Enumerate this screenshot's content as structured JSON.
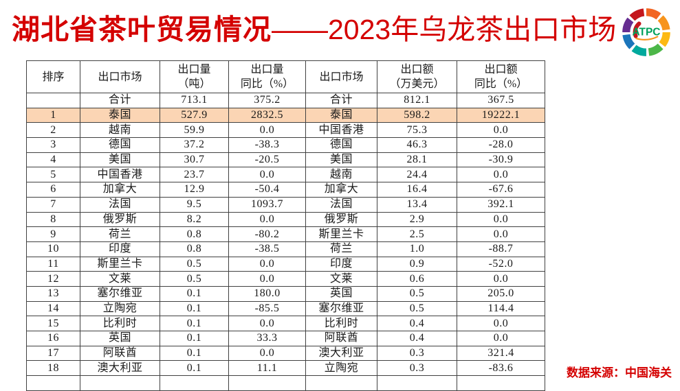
{
  "title": {
    "part1": "湖北省茶叶贸易情况",
    "part2": "——2023年乌龙茶出口市场"
  },
  "logo": {
    "text": "ATPC",
    "text_color": "#00A05A",
    "swoosh_color": "#F7941D",
    "inner_color": "#C4161C",
    "palette": [
      "#F26522",
      "#F7941D",
      "#FDB913",
      "#4CB748",
      "#00A99D",
      "#1B75BB",
      "#662D91",
      "#C4161C"
    ]
  },
  "colors": {
    "accent_red": "#D40000",
    "row_highlight": "#FBD5B4",
    "table_border": "#404040"
  },
  "table": {
    "headers": [
      {
        "line1": "排序",
        "line2": ""
      },
      {
        "line1": "出口市场",
        "line2": ""
      },
      {
        "line1": "出口量",
        "line2": "（吨）"
      },
      {
        "line1": "出口量",
        "line2": "同比（%）"
      },
      {
        "line1": "出口市场",
        "line2": ""
      },
      {
        "line1": "出口额",
        "line2": "（万美元）"
      },
      {
        "line1": "出口额",
        "line2": "同比（%）"
      }
    ],
    "rows": [
      [
        "",
        "合计",
        "713.1",
        "375.2",
        "合计",
        "812.1",
        "367.5"
      ],
      [
        "1",
        "泰国",
        "527.9",
        "2832.5",
        "泰国",
        "598.2",
        "19222.1"
      ],
      [
        "2",
        "越南",
        "59.9",
        "0.0",
        "中国香港",
        "75.3",
        "0.0"
      ],
      [
        "3",
        "德国",
        "37.2",
        "-38.3",
        "德国",
        "46.3",
        "-28.0"
      ],
      [
        "4",
        "美国",
        "30.7",
        "-20.5",
        "美国",
        "28.1",
        "-30.9"
      ],
      [
        "5",
        "中国香港",
        "23.7",
        "0.0",
        "越南",
        "24.4",
        "0.0"
      ],
      [
        "6",
        "加拿大",
        "12.9",
        "-50.4",
        "加拿大",
        "16.4",
        "-67.6"
      ],
      [
        "7",
        "法国",
        "9.5",
        "1093.7",
        "法国",
        "13.4",
        "392.1"
      ],
      [
        "8",
        "俄罗斯",
        "8.2",
        "0.0",
        "俄罗斯",
        "2.9",
        "0.0"
      ],
      [
        "9",
        "荷兰",
        "0.8",
        "-80.2",
        "斯里兰卡",
        "2.5",
        "0.0"
      ],
      [
        "10",
        "印度",
        "0.8",
        "-38.5",
        "荷兰",
        "1.0",
        "-88.7"
      ],
      [
        "11",
        "斯里兰卡",
        "0.5",
        "0.0",
        "印度",
        "0.9",
        "-52.0"
      ],
      [
        "12",
        "文莱",
        "0.5",
        "0.0",
        "文莱",
        "0.6",
        "0.0"
      ],
      [
        "13",
        "塞尔维亚",
        "0.1",
        "180.0",
        "英国",
        "0.5",
        "205.0"
      ],
      [
        "14",
        "立陶宛",
        "0.1",
        "-85.5",
        "塞尔维亚",
        "0.5",
        "114.4"
      ],
      [
        "15",
        "比利时",
        "0.1",
        "0.0",
        "比利时",
        "0.4",
        "0.0"
      ],
      [
        "16",
        "英国",
        "0.1",
        "33.3",
        "阿联酋",
        "0.4",
        "0.0"
      ],
      [
        "17",
        "阿联酋",
        "0.1",
        "0.0",
        "澳大利亚",
        "0.3",
        "321.4"
      ],
      [
        "18",
        "澳大利亚",
        "0.1",
        "11.1",
        "立陶宛",
        "0.3",
        "-83.6"
      ]
    ],
    "partial_row": [
      "",
      "",
      "",
      "",
      "",
      "",
      ""
    ],
    "highlight_row_index": 1
  },
  "footer": {
    "source": "数据来源：中国海关"
  }
}
